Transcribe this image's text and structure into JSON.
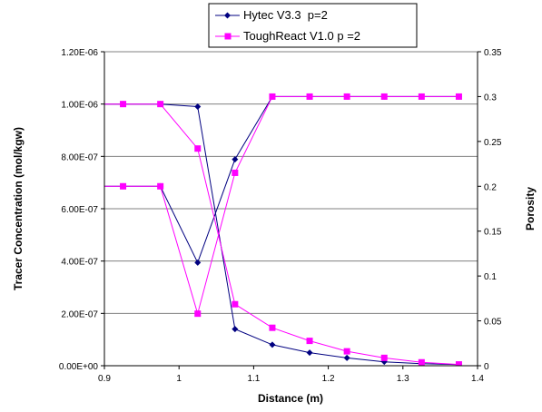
{
  "chart_data": {
    "type": "line",
    "xlabel": "Distance (m)",
    "ylabel_left": "Tracer Concentration (mol/kgw)",
    "ylabel_right": "Porosity",
    "xlim": [
      0.9,
      1.4
    ],
    "xticks": [
      "0.9",
      "1",
      "1.1",
      "1.2",
      "1.3",
      "1.4"
    ],
    "ylim_left": [
      0,
      1.2e-06
    ],
    "yticks_left": [
      "0.00E+00",
      "2.00E-07",
      "4.00E-07",
      "6.00E-07",
      "8.00E-07",
      "1.00E-06",
      "1.20E-06"
    ],
    "ylim_right": [
      0,
      0.35
    ],
    "yticks_right": [
      "0",
      "0.05",
      "0.1",
      "0.15",
      "0.2",
      "0.25",
      "0.3",
      "0.35"
    ],
    "grid": "horizontal",
    "legend_position": "top",
    "series": [
      {
        "name": "Hytec V3.3  p=2",
        "color": "#000080",
        "marker": "diamond",
        "axis": "left",
        "x": [
          0.875,
          0.925,
          0.975,
          1.025,
          1.075,
          1.125,
          1.175,
          1.225,
          1.275,
          1.325,
          1.375
        ],
        "y": [
          1e-06,
          1e-06,
          1e-06,
          9.9e-07,
          1.4e-07,
          8e-08,
          5e-08,
          3e-08,
          1.5e-08,
          8e-09,
          4e-09
        ]
      },
      {
        "name": "Hytec V3.3  p=2",
        "color": "#000080",
        "marker": "diamond",
        "axis": "right",
        "x": [
          0.875,
          0.925,
          0.975,
          1.025,
          1.075,
          1.125,
          1.175,
          1.225,
          1.275,
          1.325,
          1.375
        ],
        "y": [
          0.2,
          0.2,
          0.2,
          0.115,
          0.23,
          0.3,
          0.3,
          0.3,
          0.3,
          0.3,
          0.3
        ]
      },
      {
        "name": "ToughReact V1.0 p =2",
        "color": "#ff00ff",
        "marker": "square",
        "axis": "left",
        "x": [
          0.875,
          0.925,
          0.975,
          1.025,
          1.075,
          1.125,
          1.175,
          1.225,
          1.275,
          1.325,
          1.375
        ],
        "y": [
          1e-06,
          1e-06,
          1e-06,
          8.3e-07,
          2.35e-07,
          1.45e-07,
          9.5e-08,
          5.5e-08,
          3e-08,
          1.3e-08,
          5e-09
        ]
      },
      {
        "name": "ToughReact V1.0 p =2",
        "color": "#ff00ff",
        "marker": "square",
        "axis": "right",
        "x": [
          0.875,
          0.925,
          0.975,
          1.025,
          1.075,
          1.125,
          1.175,
          1.225,
          1.275,
          1.325,
          1.375
        ],
        "y": [
          0.2,
          0.2,
          0.2,
          0.058,
          0.215,
          0.3,
          0.3,
          0.3,
          0.3,
          0.3,
          0.3
        ]
      }
    ]
  },
  "legend": {
    "items": [
      {
        "label": "Hytec V3.3  p=2",
        "color": "#000080",
        "marker": "diamond"
      },
      {
        "label": "ToughReact V1.0 p =2",
        "color": "#ff00ff",
        "marker": "square"
      }
    ]
  }
}
